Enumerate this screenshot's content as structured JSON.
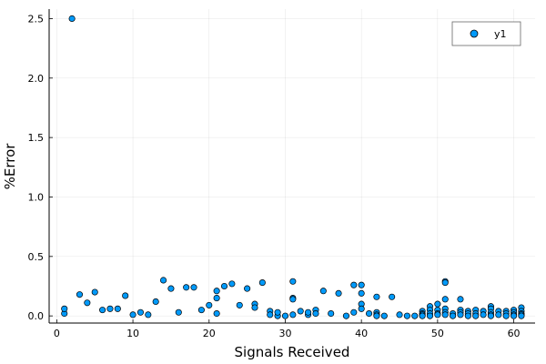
{
  "chart_data": {
    "type": "scatter",
    "xlabel": "Signals Received",
    "ylabel": "%Error",
    "xlim": [
      -1,
      62.8
    ],
    "ylim": [
      -0.06,
      2.58
    ],
    "xticks": [
      0,
      10,
      20,
      30,
      40,
      50,
      60
    ],
    "yticks": [
      0.0,
      0.5,
      1.0,
      1.5,
      2.0,
      2.5
    ],
    "xtick_labels": [
      "0",
      "10",
      "20",
      "30",
      "40",
      "50",
      "60"
    ],
    "ytick_labels": [
      "0.0",
      "0.5",
      "1.0",
      "1.5",
      "2.0",
      "2.5"
    ],
    "grid": true,
    "legend_position": "top-right",
    "marker_color": "#009AFA",
    "series": [
      {
        "name": "y1",
        "points": [
          [
            1,
            0.02
          ],
          [
            1,
            0.06
          ],
          [
            2,
            2.5
          ],
          [
            3,
            0.18
          ],
          [
            4,
            0.11
          ],
          [
            5,
            0.2
          ],
          [
            6,
            0.05
          ],
          [
            7,
            0.06
          ],
          [
            8,
            0.06
          ],
          [
            9,
            0.17
          ],
          [
            10,
            0.01
          ],
          [
            11,
            0.03
          ],
          [
            12,
            0.01
          ],
          [
            13,
            0.12
          ],
          [
            14,
            0.3
          ],
          [
            15,
            0.23
          ],
          [
            16,
            0.03
          ],
          [
            17,
            0.24
          ],
          [
            18,
            0.24
          ],
          [
            19,
            0.05
          ],
          [
            20,
            0.09
          ],
          [
            21,
            0.15
          ],
          [
            21,
            0.21
          ],
          [
            21,
            0.02
          ],
          [
            22,
            0.25
          ],
          [
            23,
            0.27
          ],
          [
            24,
            0.09
          ],
          [
            25,
            0.23
          ],
          [
            26,
            0.1
          ],
          [
            26,
            0.07
          ],
          [
            27,
            0.28
          ],
          [
            28,
            0.04
          ],
          [
            28,
            0.01
          ],
          [
            29,
            0.0
          ],
          [
            29,
            0.03
          ],
          [
            30,
            0.0
          ],
          [
            31,
            0.29
          ],
          [
            31,
            0.15
          ],
          [
            31,
            0.14
          ],
          [
            31,
            0.01
          ],
          [
            32,
            0.04
          ],
          [
            33,
            0.01
          ],
          [
            33,
            0.03
          ],
          [
            34,
            0.05
          ],
          [
            34,
            0.02
          ],
          [
            35,
            0.21
          ],
          [
            36,
            0.02
          ],
          [
            37,
            0.19
          ],
          [
            38,
            0.0
          ],
          [
            39,
            0.03
          ],
          [
            39,
            0.26
          ],
          [
            40,
            0.26
          ],
          [
            40,
            0.19
          ],
          [
            40,
            0.1
          ],
          [
            40,
            0.06
          ],
          [
            41,
            0.02
          ],
          [
            42,
            0.16
          ],
          [
            42,
            0.03
          ],
          [
            42,
            0.01
          ],
          [
            42,
            0.0
          ],
          [
            43,
            0.0
          ],
          [
            44,
            0.16
          ],
          [
            45,
            0.01
          ],
          [
            46,
            0.0
          ],
          [
            47,
            0.0
          ],
          [
            48,
            0.04
          ],
          [
            48,
            0.02
          ],
          [
            48,
            0.01
          ],
          [
            48,
            0.0
          ],
          [
            49,
            0.08
          ],
          [
            49,
            0.05
          ],
          [
            49,
            0.02
          ],
          [
            49,
            0.0
          ],
          [
            50,
            0.1
          ],
          [
            50,
            0.05
          ],
          [
            50,
            0.02
          ],
          [
            50,
            0.01
          ],
          [
            51,
            0.29
          ],
          [
            51,
            0.28
          ],
          [
            51,
            0.14
          ],
          [
            51,
            0.06
          ],
          [
            51,
            0.03
          ],
          [
            51,
            0.01
          ],
          [
            52,
            0.02
          ],
          [
            52,
            0.0
          ],
          [
            53,
            0.14
          ],
          [
            53,
            0.05
          ],
          [
            53,
            0.03
          ],
          [
            53,
            0.01
          ],
          [
            54,
            0.04
          ],
          [
            54,
            0.02
          ],
          [
            54,
            0.0
          ],
          [
            55,
            0.05
          ],
          [
            55,
            0.02
          ],
          [
            55,
            0.0
          ],
          [
            56,
            0.04
          ],
          [
            56,
            0.01
          ],
          [
            57,
            0.08
          ],
          [
            57,
            0.06
          ],
          [
            57,
            0.03
          ],
          [
            57,
            0.01
          ],
          [
            57,
            0.0
          ],
          [
            58,
            0.04
          ],
          [
            58,
            0.01
          ],
          [
            59,
            0.04
          ],
          [
            59,
            0.02
          ],
          [
            59,
            0.0
          ],
          [
            60,
            0.05
          ],
          [
            60,
            0.03
          ],
          [
            60,
            0.01
          ],
          [
            60,
            0.0
          ],
          [
            61,
            0.07
          ],
          [
            61,
            0.04
          ],
          [
            61,
            0.02
          ],
          [
            61,
            0.01
          ],
          [
            61,
            0.0
          ]
        ]
      }
    ]
  }
}
